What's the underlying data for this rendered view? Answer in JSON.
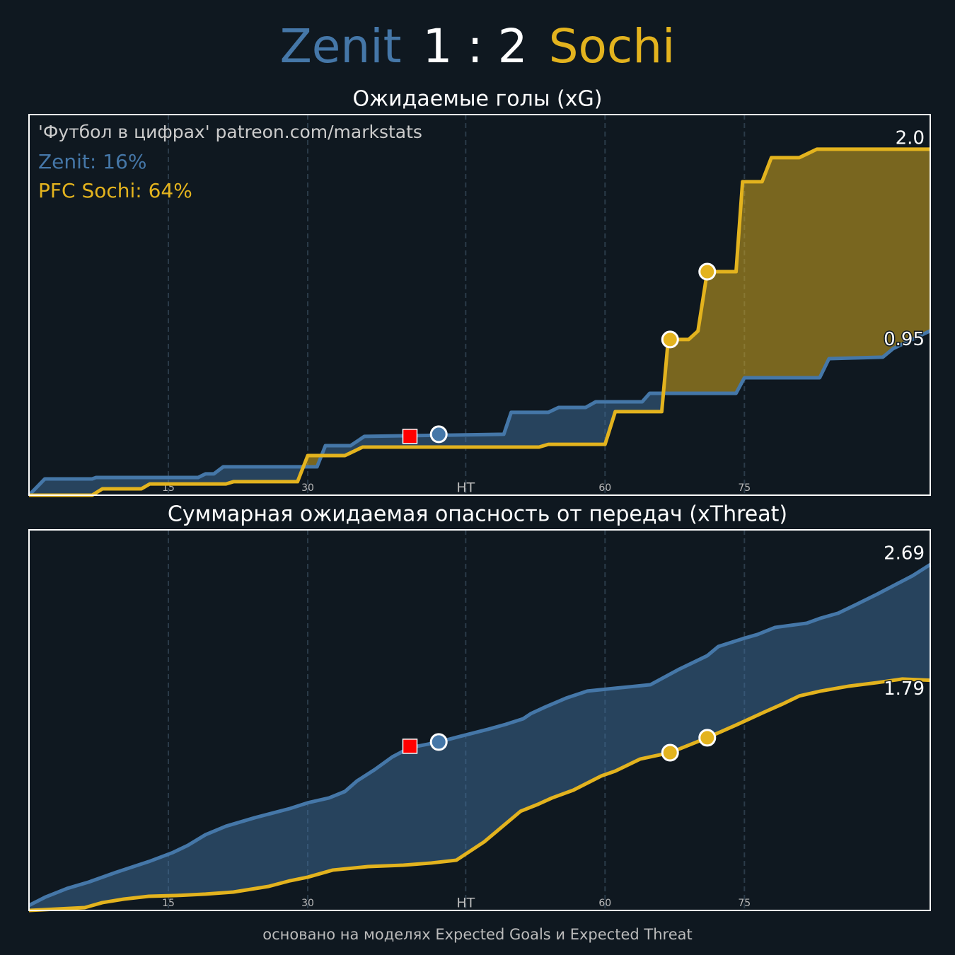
{
  "header": {
    "home": "Zenit",
    "score": "1 : 2",
    "away": "Sochi"
  },
  "footer": "основано на моделях Expected Goals и Expected Threat",
  "chart_data": [
    {
      "type": "line",
      "title": "Ожидаемые голы (xG)",
      "watermark": "'Футбол в цифрах' patreon.com/markstats",
      "xlim": [
        0,
        97
      ],
      "ylim": [
        0,
        2.2
      ],
      "xticks": [
        15,
        30,
        {
          "value": 47,
          "label": "HT"
        },
        {
          "value": 62,
          "label": "60"
        },
        {
          "value": 77,
          "label": "75"
        }
      ],
      "grid": true,
      "series": [
        {
          "name": "Zenit",
          "label": "Zenit: 16%",
          "color": "#4577a8",
          "end_label": "0.95",
          "x": [
            0,
            1.7,
            6.8,
            7.2,
            18.2,
            19.0,
            19.9,
            20.9,
            29.6,
            31.0,
            31.9,
            34.6,
            36.1,
            51.1,
            51.9,
            55.9,
            57.0,
            59.9,
            61.0,
            66.0,
            66.8,
            76.1,
            77.0,
            85.1,
            86.1,
            91.9,
            93.0,
            97
          ],
          "values": [
            0,
            0.094,
            0.094,
            0.102,
            0.102,
            0.123,
            0.123,
            0.164,
            0.164,
            0.164,
            0.286,
            0.286,
            0.34,
            0.352,
            0.479,
            0.479,
            0.507,
            0.507,
            0.54,
            0.54,
            0.589,
            0.589,
            0.679,
            0.679,
            0.789,
            0.798,
            0.847,
            0.95
          ]
        },
        {
          "name": "PFC Sochi",
          "label": "PFC Sochi: 64%",
          "color": "#e3b31e",
          "end_label": "2.0",
          "x": [
            0,
            6.8,
            7.9,
            12.1,
            13.0,
            21.2,
            22.0,
            28.9,
            30.0,
            34.0,
            35.9,
            54.9,
            55.9,
            62.0,
            63.1,
            68.1,
            68.8,
            71.0,
            72.0,
            73.0,
            76.1,
            76.8,
            78.9,
            79.9,
            82.9,
            84.8,
            97
          ],
          "values": [
            0,
            0,
            0.037,
            0.037,
            0.065,
            0.065,
            0.078,
            0.078,
            0.229,
            0.229,
            0.278,
            0.278,
            0.294,
            0.294,
            0.483,
            0.483,
            0.9,
            0.9,
            0.949,
            1.292,
            1.292,
            1.812,
            1.812,
            1.951,
            1.951,
            2.0,
            2.0
          ]
        }
      ],
      "markers": [
        {
          "kind": "red-card",
          "color": "#ff0000",
          "x": 41,
          "y": 0.34
        },
        {
          "kind": "goal",
          "series": 0,
          "x": 44.1,
          "y": 0.352
        },
        {
          "kind": "goal",
          "series": 1,
          "x": 69.0,
          "y": 0.9
        },
        {
          "kind": "goal",
          "series": 1,
          "x": 73.0,
          "y": 1.292
        }
      ]
    },
    {
      "type": "line",
      "title": "Суммарная ожидаемая опасность от передач (xThreat)",
      "xlim": [
        0,
        97
      ],
      "ylim": [
        0,
        2.96
      ],
      "xticks": [
        15,
        30,
        {
          "value": 47,
          "label": "HT"
        },
        {
          "value": 62,
          "label": "60"
        },
        {
          "value": 77,
          "label": "75"
        }
      ],
      "grid": true,
      "series": [
        {
          "name": "Zenit",
          "color": "#4577a8",
          "end_label": "2.69",
          "x": [
            0,
            1.8,
            4.1,
            6.4,
            9.4,
            12.9,
            15.5,
            17.1,
            19.0,
            21.2,
            24.3,
            28.1,
            30.0,
            32.3,
            34.0,
            35.3,
            37.2,
            39.1,
            41.0,
            44.1,
            46.4,
            49.4,
            51.3,
            53.2,
            54.0,
            55.5,
            57.8,
            60.1,
            63.1,
            66.9,
            70.0,
            73.0,
            74.2,
            76.8,
            78.4,
            80.3,
            83.7,
            85.2,
            87.1,
            89.0,
            91.3,
            93.2,
            95.1,
            97
          ],
          "values": [
            0.039,
            0.105,
            0.171,
            0.22,
            0.297,
            0.38,
            0.451,
            0.506,
            0.589,
            0.655,
            0.721,
            0.793,
            0.837,
            0.875,
            0.925,
            1.007,
            1.095,
            1.194,
            1.266,
            1.31,
            1.354,
            1.409,
            1.447,
            1.491,
            1.53,
            1.58,
            1.651,
            1.706,
            1.728,
            1.756,
            1.877,
            1.981,
            2.053,
            2.113,
            2.146,
            2.201,
            2.234,
            2.273,
            2.312,
            2.378,
            2.46,
            2.532,
            2.603,
            2.69
          ]
        },
        {
          "name": "PFC Sochi",
          "color": "#e3b31e",
          "end_label": "1.79",
          "x": [
            0,
            3.0,
            6.0,
            7.9,
            10.2,
            12.9,
            15.9,
            19.0,
            22.0,
            25.8,
            28.1,
            30.0,
            32.7,
            36.5,
            40.3,
            43.3,
            46.0,
            49.0,
            52.9,
            54.8,
            56.3,
            58.6,
            61.6,
            63.1,
            65.8,
            69.0,
            73.0,
            76.1,
            79.1,
            81.0,
            82.9,
            85.2,
            88.3,
            91.3,
            94.0,
            97
          ],
          "values": [
            0,
            0.011,
            0.022,
            0.061,
            0.088,
            0.11,
            0.116,
            0.127,
            0.143,
            0.187,
            0.231,
            0.259,
            0.314,
            0.341,
            0.352,
            0.369,
            0.391,
            0.534,
            0.771,
            0.826,
            0.875,
            0.936,
            1.046,
            1.084,
            1.178,
            1.227,
            1.343,
            1.442,
            1.541,
            1.602,
            1.668,
            1.706,
            1.745,
            1.772,
            1.8,
            1.79
          ]
        }
      ],
      "markers": [
        {
          "kind": "red-card",
          "color": "#ff0000",
          "x": 41,
          "y": 1.277
        },
        {
          "kind": "goal",
          "series": 0,
          "x": 44.1,
          "y": 1.31
        },
        {
          "kind": "goal",
          "series": 1,
          "x": 69.0,
          "y": 1.227
        },
        {
          "kind": "goal",
          "series": 1,
          "x": 73.0,
          "y": 1.343
        }
      ]
    }
  ]
}
